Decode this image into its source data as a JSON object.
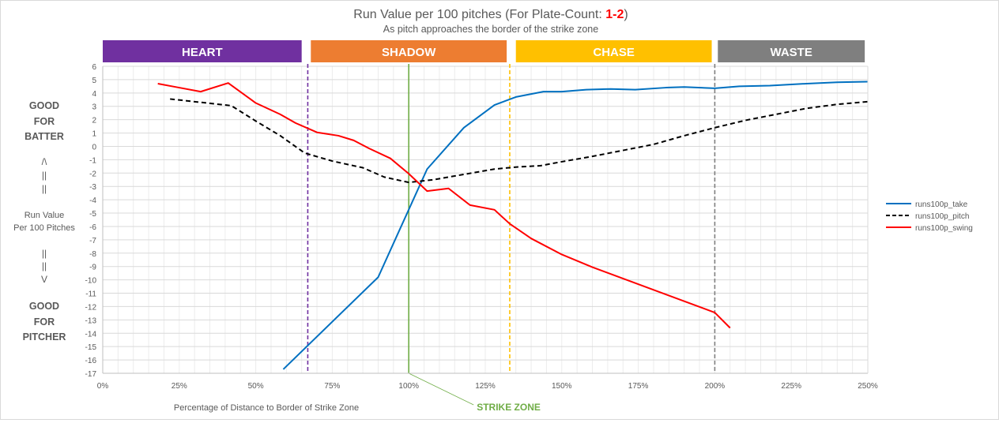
{
  "chart_data": {
    "type": "line",
    "title": {
      "prefix": "Run Value per 100 pitches (For Plate-Count: ",
      "count": "1-2",
      "suffix": ")"
    },
    "subtitle": "As pitch approaches the border of the strike zone",
    "xlabel": "Percentage of Distance to Border of Strike Zone",
    "ylabel": "Run Value Per 100 Pitches",
    "xlim": [
      0,
      250
    ],
    "ylim": [
      -17,
      6
    ],
    "x_ticks": [
      0,
      25,
      50,
      75,
      100,
      125,
      150,
      175,
      200,
      225,
      250
    ],
    "x_tick_labels": [
      "0%",
      "25%",
      "50%",
      "75%",
      "100%",
      "125%",
      "150%",
      "175%",
      "200%",
      "225%",
      "250%"
    ],
    "y_ticks": [
      6,
      5,
      4,
      3,
      2,
      1,
      0,
      -1,
      -2,
      -3,
      -4,
      -5,
      -6,
      -7,
      -8,
      -9,
      -10,
      -11,
      -12,
      -13,
      -14,
      -15,
      -16,
      -17
    ],
    "grid": true,
    "legend_position": "right",
    "zones": [
      {
        "label": "HEART",
        "color": "#7030a0",
        "x_start": 0,
        "x_end": 65
      },
      {
        "label": "SHADOW",
        "color": "#ed7d31",
        "x_start": 68,
        "x_end": 132
      },
      {
        "label": "CHASE",
        "color": "#ffc000",
        "x_start": 135,
        "x_end": 199
      },
      {
        "label": "WASTE",
        "color": "#7f7f7f",
        "x_start": 201,
        "x_end": 249
      }
    ],
    "reference_lines": [
      {
        "x": 67,
        "color": "#7030a0",
        "style": "dashed"
      },
      {
        "x": 100,
        "color": "#70ad47",
        "style": "solid",
        "label": "STRIKE ZONE"
      },
      {
        "x": 133,
        "color": "#ffc000",
        "style": "dashed"
      },
      {
        "x": 200,
        "color": "#7f7f7f",
        "style": "dashed"
      }
    ],
    "series": [
      {
        "name": "runs100p_take",
        "color": "#0070c0",
        "dash": "solid",
        "x": [
          59,
          90,
          106,
          118,
          128,
          135,
          144,
          150,
          158,
          166,
          174,
          184,
          190,
          200,
          208,
          218,
          230,
          240,
          250
        ],
        "values": [
          -16.7,
          -9.8,
          -1.7,
          1.4,
          3.1,
          3.7,
          4.1,
          4.1,
          4.25,
          4.3,
          4.25,
          4.4,
          4.45,
          4.35,
          4.5,
          4.55,
          4.7,
          4.8,
          4.85
        ]
      },
      {
        "name": "runs100p_pitch",
        "color": "#000000",
        "dash": "dashed",
        "x": [
          22,
          32,
          42,
          50,
          58,
          66,
          75,
          85,
          92,
          100,
          108,
          118,
          128,
          135,
          143,
          150,
          160,
          170,
          180,
          190,
          200,
          210,
          220,
          230,
          240,
          250
        ],
        "values": [
          3.55,
          3.3,
          3.05,
          1.9,
          0.8,
          -0.5,
          -1.1,
          -1.6,
          -2.3,
          -2.7,
          -2.5,
          -2.1,
          -1.7,
          -1.55,
          -1.45,
          -1.15,
          -0.75,
          -0.3,
          0.15,
          0.8,
          1.4,
          1.95,
          2.4,
          2.85,
          3.15,
          3.35
        ],
        "label_prefix": "runs"
      },
      {
        "name": "runs100p_swing",
        "color": "#ff0000",
        "dash": "solid",
        "x": [
          18,
          25,
          32,
          41,
          50,
          58,
          63,
          70,
          77,
          82,
          87,
          94,
          100,
          106,
          113,
          120,
          128,
          133,
          140,
          150,
          160,
          170,
          180,
          190,
          200,
          205
        ],
        "values": [
          4.7,
          4.4,
          4.1,
          4.75,
          3.25,
          2.4,
          1.75,
          1.05,
          0.8,
          0.45,
          -0.15,
          -0.9,
          -2.05,
          -3.35,
          -3.15,
          -4.4,
          -4.75,
          -5.8,
          -6.9,
          -8.1,
          -9.05,
          -9.9,
          -10.75,
          -11.6,
          -12.45,
          -13.6
        ]
      }
    ],
    "legend": [
      "runs100p_take",
      "runs100p_pitch",
      "runs100p_swing"
    ]
  },
  "side_labels": {
    "good_batter": [
      "GOOD",
      "FOR",
      "BATTER"
    ],
    "good_pitcher": [
      "GOOD",
      "FOR",
      "PITCHER"
    ],
    "up_arrow": [
      "/\\",
      "||",
      "||"
    ],
    "down_arrow": [
      "||",
      "||",
      "V"
    ],
    "run_value": [
      "Run Value",
      "Per 100 Pitches"
    ]
  }
}
